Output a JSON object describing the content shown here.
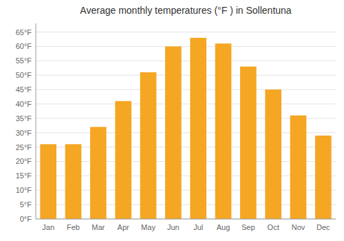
{
  "chart_data": {
    "type": "bar",
    "title": "Average monthly temperatures (°F ) in Sollentuna",
    "categories": [
      "Jan",
      "Feb",
      "Mar",
      "Apr",
      "May",
      "Jun",
      "Jul",
      "Aug",
      "Sep",
      "Oct",
      "Nov",
      "Dec"
    ],
    "values": [
      26,
      26,
      32,
      41,
      51,
      60,
      63,
      61,
      53,
      45,
      36,
      29
    ],
    "color": "#F5A623",
    "ylim": [
      0,
      68
    ],
    "yticks": [
      {
        "value": 0,
        "label": "0°F"
      },
      {
        "value": 5,
        "label": "5°F"
      },
      {
        "value": 10,
        "label": "10°F"
      },
      {
        "value": 15,
        "label": "15°F"
      },
      {
        "value": 20,
        "label": "20°F"
      },
      {
        "value": 25,
        "label": "25°F"
      },
      {
        "value": 30,
        "label": "30°F"
      },
      {
        "value": 35,
        "label": "35°F"
      },
      {
        "value": 40,
        "label": "40°F"
      },
      {
        "value": 45,
        "label": "45°F"
      },
      {
        "value": 50,
        "label": "50°F"
      },
      {
        "value": 55,
        "label": "55°F"
      },
      {
        "value": 60,
        "label": "60°F"
      },
      {
        "value": 65,
        "label": "65°F"
      }
    ],
    "grid": true
  }
}
